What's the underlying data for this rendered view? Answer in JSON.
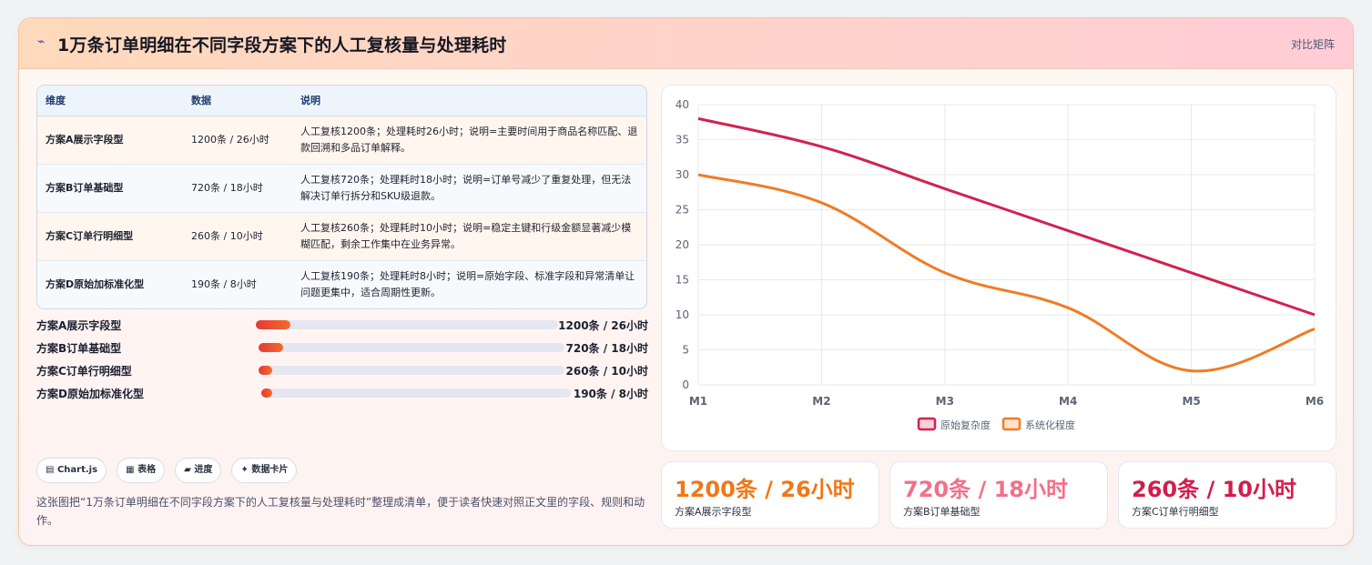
{
  "header": {
    "title": "1万条订单明细在不同字段方案下的人工复核量与处理耗时",
    "icon": "spark-icon",
    "right_label": "对比矩阵"
  },
  "table": {
    "columns": [
      "维度",
      "数据",
      "说明"
    ],
    "rows": [
      {
        "dim": "方案A展示字段型",
        "data": "1200条 / 26小时",
        "desc": "人工复核1200条；处理耗时26小时；说明=主要时间用于商品名称匹配、退款回溯和多品订单解释。"
      },
      {
        "dim": "方案B订单基础型",
        "data": "720条 / 18小时",
        "desc": "人工复核720条；处理耗时18小时；说明=订单号减少了重复处理，但无法解决订单行拆分和SKU级退款。"
      },
      {
        "dim": "方案C订单行明细型",
        "data": "260条 / 10小时",
        "desc": "人工复核260条；处理耗时10小时；说明=稳定主键和行级金额显著减少模糊匹配，剩余工作集中在业务异常。"
      },
      {
        "dim": "方案D原始加标准化型",
        "data": "190条 / 8小时",
        "desc": "人工复核190条；处理耗时8小时；说明=原始字段、标准字段和异常清单让问题更集中，适合周期性更新。"
      }
    ]
  },
  "progress": [
    {
      "label": "方案A展示字段型",
      "value": "1200条 / 26小时",
      "fraction": 0.115
    },
    {
      "label": "方案B订单基础型",
      "value": "720条 / 18小时",
      "fraction": 0.08
    },
    {
      "label": "方案C订单行明细型",
      "value": "260条 / 10小时",
      "fraction": 0.045
    },
    {
      "label": "方案D原始加标准化型",
      "value": "190条 / 8小时",
      "fraction": 0.035
    }
  ],
  "chips": [
    {
      "icon": "chart-icon",
      "glyph": "▤",
      "label": "Chart.js"
    },
    {
      "icon": "table-icon",
      "glyph": "▦",
      "label": "表格"
    },
    {
      "icon": "progress-icon",
      "glyph": "▰",
      "label": "进度"
    },
    {
      "icon": "card-icon",
      "glyph": "✦",
      "label": "数据卡片"
    }
  ],
  "summary": "这张图把“1万条订单明细在不同字段方案下的人工复核量与处理耗时”整理成清单，便于读者快速对照正文里的字段、规则和动作。",
  "chart_data": {
    "type": "line",
    "x": [
      "M1",
      "M2",
      "M3",
      "M4",
      "M5",
      "M6"
    ],
    "ylim": [
      0,
      40
    ],
    "yticks": [
      0,
      5,
      10,
      15,
      20,
      25,
      30,
      35,
      40
    ],
    "grid": true,
    "legend_position": "bottom",
    "series": [
      {
        "name": "原始复杂度",
        "values": [
          38,
          34,
          28,
          22,
          16,
          10
        ],
        "color": "#d0234f",
        "fill": "#f7d0da"
      },
      {
        "name": "系统化程度",
        "values": [
          30,
          26,
          16,
          11,
          2,
          8
        ],
        "color": "#ef7c24",
        "fill": "#fde2cc"
      }
    ]
  },
  "stats": [
    {
      "value": "1200条 / 26小时",
      "label": "方案A展示字段型",
      "color": "#f07818"
    },
    {
      "value": "720条 / 18小时",
      "label": "方案B订单基础型",
      "color": "#f2708a"
    },
    {
      "value": "260条 / 10小时",
      "label": "方案C订单行明细型",
      "color": "#d21d4d"
    }
  ]
}
